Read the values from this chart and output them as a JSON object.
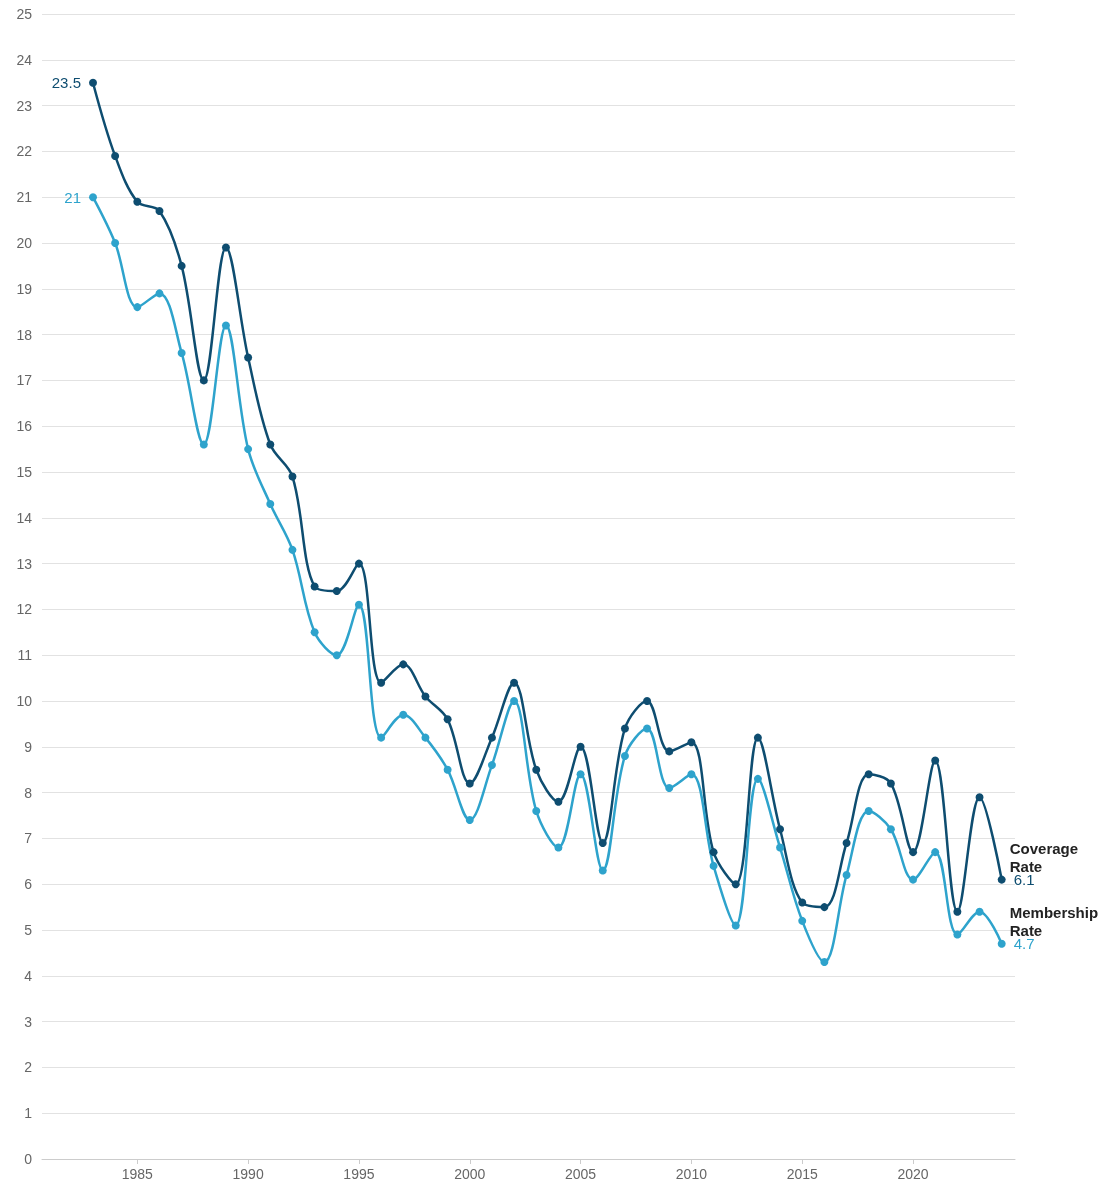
{
  "chart_data": {
    "type": "line",
    "x": [
      1983,
      1984,
      1985,
      1986,
      1987,
      1988,
      1989,
      1990,
      1991,
      1992,
      1993,
      1994,
      1995,
      1996,
      1997,
      1998,
      1999,
      2000,
      2001,
      2002,
      2003,
      2004,
      2005,
      2006,
      2007,
      2008,
      2009,
      2010,
      2011,
      2012,
      2013,
      2014,
      2015,
      2016,
      2017,
      2018,
      2019,
      2020,
      2021,
      2022,
      2023,
      2024
    ],
    "series": [
      {
        "name": "Coverage Rate",
        "color": "#0e4d70",
        "values": [
          23.5,
          21.9,
          20.9,
          20.7,
          19.5,
          17.0,
          19.9,
          17.5,
          15.6,
          14.9,
          12.5,
          12.4,
          13.0,
          10.4,
          10.8,
          10.1,
          9.6,
          8.2,
          9.2,
          10.4,
          8.5,
          7.8,
          9.0,
          6.9,
          9.4,
          10.0,
          8.9,
          9.1,
          6.7,
          6.0,
          9.2,
          7.2,
          5.6,
          5.5,
          6.9,
          8.4,
          8.2,
          6.7,
          8.7,
          5.4,
          7.9,
          6.1
        ],
        "value_labels": [
          "23.5",
          null,
          null,
          null,
          null,
          null,
          null,
          null,
          null,
          null,
          null,
          null,
          null,
          null,
          null,
          null,
          null,
          null,
          null,
          null,
          null,
          null,
          null,
          null,
          null,
          null,
          null,
          null,
          null,
          null,
          null,
          null,
          null,
          null,
          null,
          null,
          null,
          null,
          null,
          null,
          null,
          "6.1"
        ]
      },
      {
        "name": "Membership Rate",
        "color": "#2ea3cc",
        "values": [
          21.0,
          20.0,
          18.6,
          18.9,
          17.6,
          15.6,
          18.2,
          15.5,
          14.3,
          13.3,
          11.5,
          11.0,
          12.1,
          9.2,
          9.7,
          9.2,
          8.5,
          7.4,
          8.6,
          10.0,
          7.6,
          6.8,
          8.4,
          6.3,
          8.8,
          9.4,
          8.1,
          8.4,
          6.4,
          5.1,
          8.3,
          6.8,
          5.2,
          4.3,
          6.2,
          7.6,
          7.2,
          6.1,
          6.7,
          4.9,
          5.4,
          4.7
        ],
        "value_labels": [
          "21",
          null,
          null,
          null,
          null,
          null,
          null,
          null,
          null,
          null,
          null,
          null,
          null,
          null,
          null,
          null,
          null,
          null,
          null,
          null,
          null,
          null,
          null,
          null,
          null,
          null,
          null,
          null,
          null,
          null,
          null,
          null,
          null,
          null,
          null,
          null,
          null,
          null,
          null,
          null,
          null,
          "4.7"
        ]
      }
    ],
    "xlim": [
      1980.7,
      2024.6
    ],
    "xticks": [
      1985,
      1990,
      1995,
      2000,
      2005,
      2010,
      2015,
      2020
    ],
    "ylim": [
      0,
      25
    ],
    "yticks": [
      0,
      1,
      2,
      3,
      4,
      5,
      6,
      7,
      8,
      9,
      10,
      11,
      12,
      13,
      14,
      15,
      16,
      17,
      18,
      19,
      20,
      21,
      22,
      23,
      24,
      25
    ],
    "grid": "y",
    "legend": false,
    "marker": "circle",
    "line_style": "solid"
  }
}
